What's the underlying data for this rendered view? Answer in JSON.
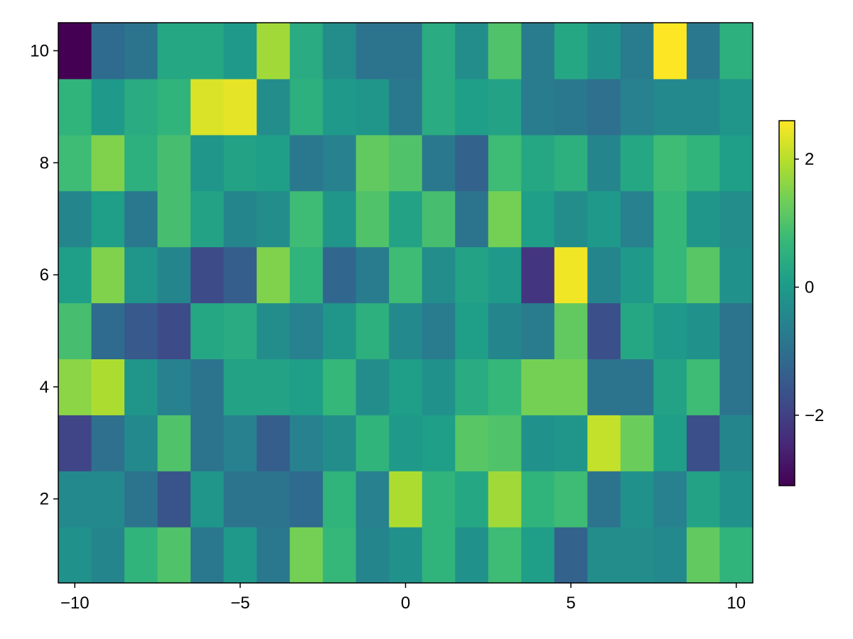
{
  "chart_data": {
    "type": "heatmap",
    "title": "",
    "xlabel": "",
    "ylabel": "",
    "x": [
      -10,
      -9,
      -8,
      -7,
      -6,
      -5,
      -4,
      -3,
      -2,
      -1,
      0,
      1,
      2,
      3,
      4,
      5,
      6,
      7,
      8,
      9,
      10
    ],
    "y": [
      1,
      2,
      3,
      4,
      5,
      6,
      7,
      8,
      9,
      10
    ],
    "xlim": [
      -10.5,
      10.5
    ],
    "ylim": [
      0.5,
      10.5
    ],
    "x_ticks": [
      -10,
      -5,
      0,
      5,
      10
    ],
    "x_tick_labels": [
      "−10",
      "−5",
      "0",
      "5",
      "10"
    ],
    "y_ticks": [
      2,
      4,
      6,
      8,
      10
    ],
    "y_tick_labels": [
      "2",
      "4",
      "6",
      "8",
      "10"
    ],
    "values": [
      [
        -0.2,
        -0.5,
        0.6,
        1.0,
        -0.8,
        0.0,
        -0.8,
        1.4,
        0.7,
        -0.5,
        -0.2,
        0.6,
        -0.2,
        0.8,
        0.1,
        -1.3,
        -0.3,
        -0.3,
        -0.4,
        1.2,
        0.6
      ],
      [
        -0.4,
        -0.4,
        -0.9,
        -1.6,
        -0.1,
        -0.9,
        -0.9,
        -1.1,
        0.6,
        -0.6,
        1.9,
        0.6,
        0.3,
        1.8,
        0.6,
        0.8,
        -0.9,
        -0.2,
        -0.6,
        0.2,
        -0.2
      ],
      [
        -1.9,
        -1.0,
        -0.4,
        1.0,
        -0.9,
        -0.6,
        -1.4,
        -0.6,
        -0.3,
        0.6,
        0.0,
        0.1,
        1.1,
        1.0,
        -0.2,
        -0.1,
        2.1,
        1.3,
        0.1,
        -1.7,
        -0.5
      ],
      [
        1.6,
        1.9,
        -0.1,
        -0.6,
        -0.9,
        0.2,
        0.2,
        0.1,
        0.7,
        -0.3,
        0.1,
        -0.2,
        0.4,
        0.7,
        1.4,
        1.4,
        -0.9,
        -0.9,
        0.2,
        0.8,
        -0.9
      ],
      [
        0.9,
        -1.1,
        -1.5,
        -1.8,
        0.3,
        0.4,
        -0.3,
        -0.6,
        -0.1,
        0.5,
        -0.4,
        -0.7,
        0.1,
        -0.5,
        -0.7,
        1.2,
        -1.7,
        0.3,
        0.0,
        -0.2,
        -0.9
      ],
      [
        0.1,
        1.5,
        -0.1,
        -0.5,
        -1.8,
        -1.4,
        1.5,
        0.6,
        -1.2,
        -0.7,
        0.8,
        -0.3,
        0.2,
        0.0,
        -2.2,
        2.5,
        -0.5,
        0.0,
        0.7,
        1.1,
        -0.2
      ],
      [
        -0.5,
        0.1,
        -0.8,
        0.9,
        0.2,
        -0.5,
        -0.3,
        0.8,
        -0.1,
        1.0,
        0.2,
        0.9,
        -0.9,
        1.4,
        0.1,
        -0.3,
        0.0,
        -0.6,
        0.7,
        -0.1,
        -0.3
      ],
      [
        0.8,
        1.5,
        0.5,
        0.9,
        -0.1,
        0.2,
        0.1,
        -0.8,
        -0.6,
        1.2,
        1.0,
        -0.8,
        -1.3,
        0.8,
        0.3,
        0.5,
        -0.5,
        0.3,
        0.8,
        0.6,
        0.1
      ],
      [
        0.6,
        0.0,
        0.4,
        0.6,
        2.3,
        2.4,
        -0.3,
        0.5,
        0.0,
        -0.1,
        -0.8,
        0.4,
        0.1,
        0.2,
        -0.7,
        -0.8,
        -1.0,
        -0.6,
        -0.4,
        -0.4,
        -0.1
      ],
      [
        -3.1,
        -1.1,
        -0.9,
        0.3,
        0.3,
        0.0,
        1.8,
        0.4,
        -0.3,
        -0.9,
        -0.9,
        0.4,
        -0.3,
        1.0,
        -0.7,
        0.3,
        -0.2,
        -0.7,
        2.6,
        -0.8,
        0.5
      ]
    ],
    "colormap": "viridis",
    "colorbar": {
      "range": [
        -3.1,
        2.6
      ],
      "ticks": [
        -2,
        0,
        2
      ],
      "tick_labels": [
        "−2",
        "0",
        "2"
      ]
    },
    "grid": false,
    "legend": "none"
  }
}
